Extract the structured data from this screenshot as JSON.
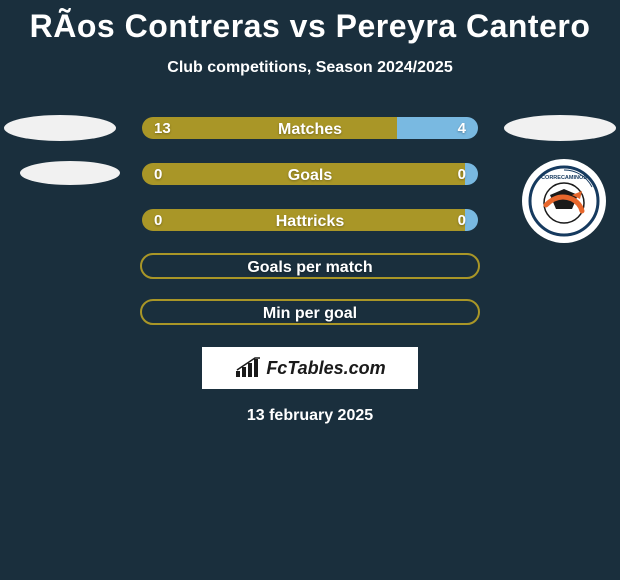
{
  "title": "RÃ­os Contreras vs Pereyra Cantero",
  "subtitle": "Club competitions, Season 2024/2025",
  "date": "13 february 2025",
  "brand": "FcTables.com",
  "colors": {
    "background": "#1a2f3d",
    "left_bar": "#a99627",
    "right_bar": "#79b9e1",
    "border_empty": "#a99627",
    "text": "#ffffff",
    "brand_bg": "#ffffff",
    "brand_text": "#1a1a1a"
  },
  "rows": [
    {
      "label": "Matches",
      "left": "13",
      "right": "4",
      "left_pct": 76,
      "right_pct": 24,
      "mode": "split"
    },
    {
      "label": "Goals",
      "left": "0",
      "right": "0",
      "left_pct": 96,
      "right_pct": 4,
      "mode": "split"
    },
    {
      "label": "Hattricks",
      "left": "0",
      "right": "0",
      "left_pct": 96,
      "right_pct": 4,
      "mode": "split"
    },
    {
      "label": "Goals per match",
      "left": "",
      "right": "",
      "left_pct": 0,
      "right_pct": 0,
      "mode": "empty"
    },
    {
      "label": "Min per goal",
      "left": "",
      "right": "",
      "left_pct": 0,
      "right_pct": 0,
      "mode": "empty"
    }
  ],
  "club_name": "Correcaminos"
}
